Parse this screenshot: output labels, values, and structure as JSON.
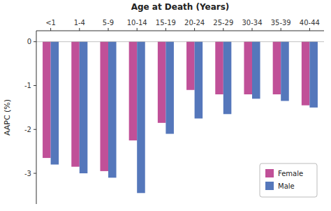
{
  "chart_data": {
    "type": "bar",
    "title": "Age at Death (Years)",
    "ylabel": "AAPC (%)",
    "categories": [
      "<1",
      "1-4",
      "5-9",
      "10-14",
      "15-19",
      "20-24",
      "25-29",
      "30-34",
      "35-39",
      "40-44"
    ],
    "series": [
      {
        "name": "Female",
        "color": "#C05098",
        "values": [
          -2.65,
          -2.85,
          -2.95,
          -2.25,
          -1.85,
          -1.1,
          -1.2,
          -1.2,
          -1.2,
          -1.45
        ]
      },
      {
        "name": "Male",
        "color": "#5577BB",
        "values": [
          -2.8,
          -3.0,
          -3.1,
          -3.45,
          -2.1,
          -1.75,
          -1.65,
          -1.3,
          -1.35,
          -1.5
        ]
      }
    ],
    "ylim": [
      -3.7,
      0.25
    ],
    "yticks": [
      0,
      -1,
      -2,
      -3
    ],
    "grid": false,
    "legend": "lower right"
  }
}
